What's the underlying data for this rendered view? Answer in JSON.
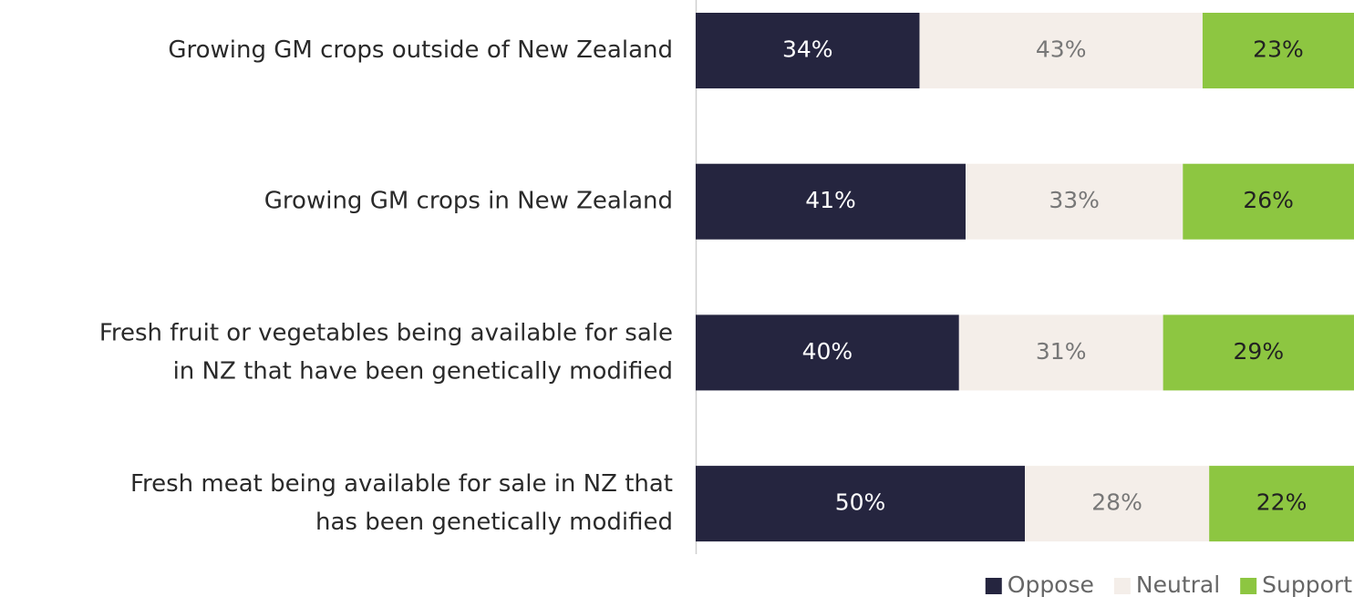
{
  "chart_data": {
    "type": "stacked-barh",
    "categories": [
      [
        "Growing GM crops outside of New Zealand"
      ],
      [
        "Growing GM crops in New Zealand"
      ],
      [
        "Fresh fruit or vegetables being available for sale",
        "in NZ that have been genetically modified"
      ],
      [
        "Fresh meat being available for sale in NZ that",
        "has been genetically modified"
      ]
    ],
    "series": [
      {
        "name": "Oppose",
        "color": "#25253f",
        "label_color": "#ffffff",
        "values": [
          34,
          41,
          40,
          50
        ],
        "value_labels": [
          "34%",
          "41%",
          "40%",
          "50%"
        ]
      },
      {
        "name": "Neutral",
        "color": "#f4eee9",
        "label_color": "#777777",
        "values": [
          43,
          33,
          31,
          28
        ],
        "value_labels": [
          "43%",
          "33%",
          "31%",
          "28%"
        ]
      },
      {
        "name": "Support",
        "color": "#8dc641",
        "label_color": "#222222",
        "values": [
          23,
          26,
          29,
          22
        ],
        "value_labels": [
          "23%",
          "26%",
          "29%",
          "22%"
        ]
      }
    ],
    "xlim": [
      0,
      100
    ],
    "legend": "lower right"
  }
}
